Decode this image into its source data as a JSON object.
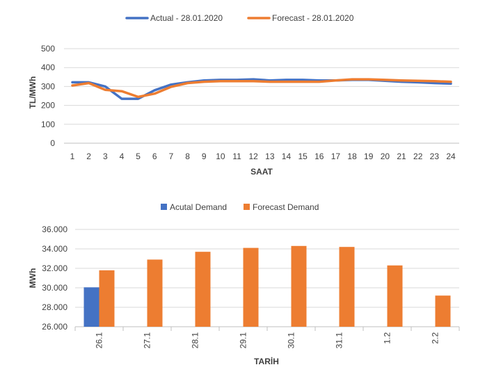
{
  "colors": {
    "actual": "#4472c4",
    "forecast": "#ed7d31",
    "grid": "#d9d9d9",
    "axis": "#bfbfbf",
    "text": "#404040"
  },
  "chart_data": [
    {
      "type": "line",
      "title": "",
      "legend": [
        "Actual - 28.01.2020",
        "Forecast - 28.01.2020"
      ],
      "legend_position": "top",
      "xlabel": "SAAT",
      "ylabel": "TL/MWh",
      "ylim": [
        0,
        500
      ],
      "yticks": [
        0,
        100,
        200,
        300,
        400,
        500
      ],
      "x": [
        "1",
        "2",
        "3",
        "4",
        "5",
        "6",
        "7",
        "8",
        "9",
        "10",
        "11",
        "12",
        "13",
        "14",
        "15",
        "16",
        "17",
        "18",
        "19",
        "20",
        "21",
        "22",
        "23",
        "24"
      ],
      "series": [
        {
          "name": "Actual - 28.01.2020",
          "values": [
            322,
            322,
            300,
            235,
            235,
            280,
            310,
            322,
            332,
            335,
            335,
            338,
            332,
            335,
            335,
            332,
            332,
            335,
            335,
            330,
            325,
            322,
            318,
            315
          ]
        },
        {
          "name": "Forecast - 28.01.2020",
          "values": [
            305,
            318,
            282,
            275,
            245,
            262,
            298,
            318,
            325,
            328,
            328,
            328,
            325,
            325,
            325,
            325,
            332,
            338,
            338,
            335,
            332,
            330,
            328,
            325
          ]
        }
      ]
    },
    {
      "type": "bar",
      "title": "",
      "legend": [
        "Acutal Demand",
        "Forecast Demand"
      ],
      "legend_position": "top",
      "xlabel": "TARİH",
      "ylabel": "MWh",
      "ylim": [
        26000,
        36000
      ],
      "yticks": [
        "26.000",
        "28.000",
        "30.000",
        "32.000",
        "34.000",
        "36.000"
      ],
      "categories": [
        "26.1",
        "27.1",
        "28.1",
        "29.1",
        "30.1",
        "31.1",
        "1.2",
        "2.2"
      ],
      "series": [
        {
          "name": "Acutal Demand",
          "values": [
            30050,
            null,
            null,
            null,
            null,
            null,
            null,
            null
          ]
        },
        {
          "name": "Forecast Demand",
          "values": [
            31800,
            32900,
            33700,
            34100,
            34300,
            34200,
            32300,
            29200
          ]
        }
      ]
    }
  ]
}
